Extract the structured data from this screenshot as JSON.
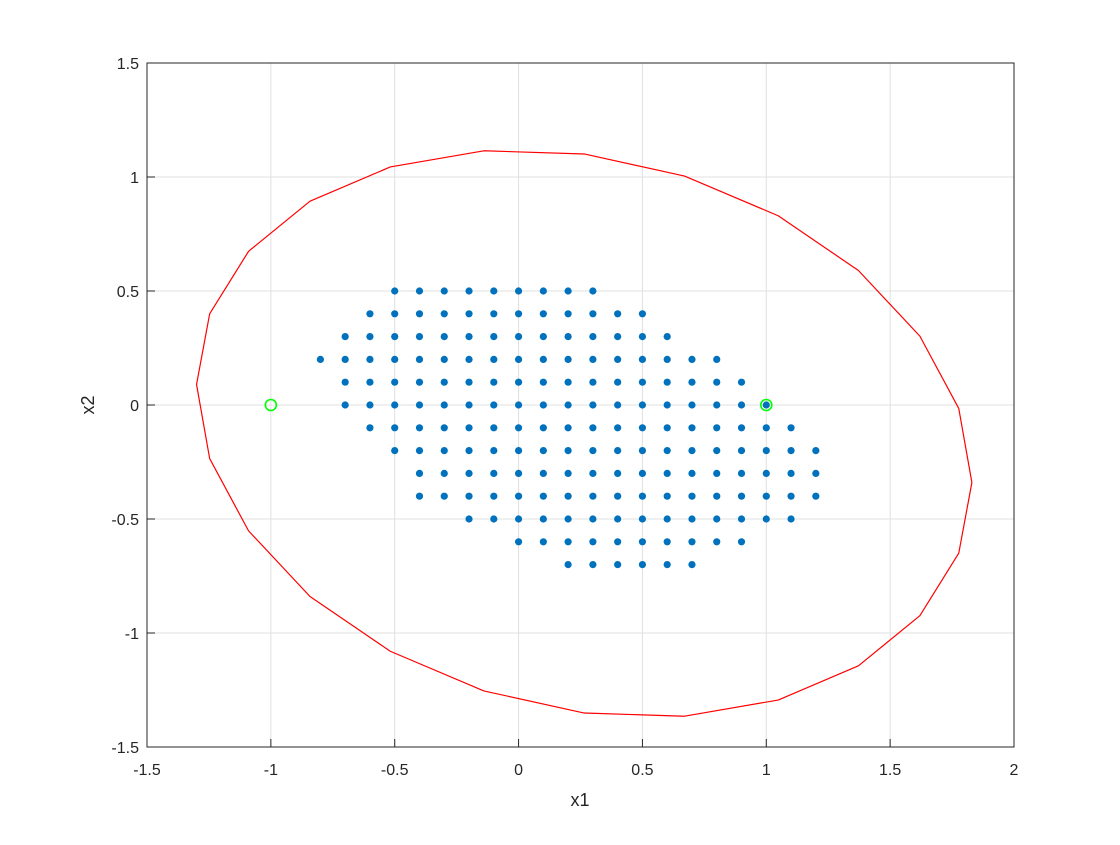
{
  "chart_data": {
    "type": "scatter",
    "xlabel": "x1",
    "ylabel": "x2",
    "xlim": [
      -1.5,
      2
    ],
    "ylim": [
      -1.5,
      1.5
    ],
    "xticks": [
      -1.5,
      -1,
      -0.5,
      0,
      0.5,
      1,
      1.5,
      2
    ],
    "yticks": [
      -1.5,
      -1,
      -0.5,
      0,
      0.5,
      1,
      1.5
    ],
    "grid": true,
    "series": [
      {
        "type": "scatter",
        "marker": "dot",
        "color": "#0072bd",
        "x": [
          -0.5,
          -0.4,
          -0.3,
          -0.2,
          -0.1,
          0,
          0.1,
          0.2,
          0.3,
          -0.6,
          -0.5,
          -0.4,
          -0.3,
          -0.2,
          -0.1,
          0,
          0.1,
          0.2,
          0.3,
          0.4,
          0.5,
          -0.7,
          -0.6,
          -0.5,
          -0.4,
          -0.3,
          -0.2,
          -0.1,
          0,
          0.1,
          0.2,
          0.3,
          0.4,
          0.5,
          0.6,
          -0.8,
          -0.7,
          -0.6,
          -0.5,
          -0.4,
          -0.3,
          -0.2,
          -0.1,
          0,
          0.1,
          0.2,
          0.3,
          0.4,
          0.5,
          0.6,
          0.7,
          0.8,
          -0.7,
          -0.6,
          -0.5,
          -0.4,
          -0.3,
          -0.2,
          -0.1,
          0,
          0.1,
          0.2,
          0.3,
          0.4,
          0.5,
          0.6,
          0.7,
          0.8,
          0.9,
          -0.7,
          -0.6,
          -0.5,
          -0.4,
          -0.3,
          -0.2,
          -0.1,
          0,
          0.1,
          0.2,
          0.3,
          0.4,
          0.5,
          0.6,
          0.7,
          0.8,
          0.9,
          1,
          -0.6,
          -0.5,
          -0.4,
          -0.3,
          -0.2,
          -0.1,
          0,
          0.1,
          0.2,
          0.3,
          0.4,
          0.5,
          0.6,
          0.7,
          0.8,
          0.9,
          1,
          1.1,
          -0.5,
          -0.4,
          -0.3,
          -0.2,
          -0.1,
          0,
          0.1,
          0.2,
          0.3,
          0.4,
          0.5,
          0.6,
          0.7,
          0.8,
          0.9,
          1,
          1.1,
          1.2,
          -0.4,
          -0.3,
          -0.2,
          -0.1,
          0,
          0.1,
          0.2,
          0.3,
          0.4,
          0.5,
          0.6,
          0.7,
          0.8,
          0.9,
          1,
          1.1,
          1.2,
          -0.4,
          -0.3,
          -0.2,
          -0.1,
          0,
          0.1,
          0.2,
          0.3,
          0.4,
          0.5,
          0.6,
          0.7,
          0.8,
          0.9,
          1,
          1.1,
          1.2,
          -0.2,
          -0.1,
          0,
          0.1,
          0.2,
          0.3,
          0.4,
          0.5,
          0.6,
          0.7,
          0.8,
          0.9,
          1,
          1.1,
          0,
          0.1,
          0.2,
          0.3,
          0.4,
          0.5,
          0.6,
          0.7,
          0.8,
          0.9,
          0.2,
          0.3,
          0.4,
          0.5,
          0.6,
          0.7
        ],
        "values": [
          0.5,
          0.5,
          0.5,
          0.5,
          0.5,
          0.5,
          0.5,
          0.5,
          0.5,
          0.4,
          0.4,
          0.4,
          0.4,
          0.4,
          0.4,
          0.4,
          0.4,
          0.4,
          0.4,
          0.4,
          0.4,
          0.3,
          0.3,
          0.3,
          0.3,
          0.3,
          0.3,
          0.3,
          0.3,
          0.3,
          0.3,
          0.3,
          0.3,
          0.3,
          0.3,
          0.2,
          0.2,
          0.2,
          0.2,
          0.2,
          0.2,
          0.2,
          0.2,
          0.2,
          0.2,
          0.2,
          0.2,
          0.2,
          0.2,
          0.2,
          0.2,
          0.2,
          0.1,
          0.1,
          0.1,
          0.1,
          0.1,
          0.1,
          0.1,
          0.1,
          0.1,
          0.1,
          0.1,
          0.1,
          0.1,
          0.1,
          0.1,
          0.1,
          0.1,
          0,
          0,
          0,
          0,
          0,
          0,
          0,
          0,
          0,
          0,
          0,
          0,
          0,
          0,
          0,
          0,
          0,
          0,
          -0.1,
          -0.1,
          -0.1,
          -0.1,
          -0.1,
          -0.1,
          -0.1,
          -0.1,
          -0.1,
          -0.1,
          -0.1,
          -0.1,
          -0.1,
          -0.1,
          -0.1,
          -0.1,
          -0.1,
          -0.1,
          -0.2,
          -0.2,
          -0.2,
          -0.2,
          -0.2,
          -0.2,
          -0.2,
          -0.2,
          -0.2,
          -0.2,
          -0.2,
          -0.2,
          -0.2,
          -0.2,
          -0.2,
          -0.2,
          -0.2,
          -0.2,
          -0.3,
          -0.3,
          -0.3,
          -0.3,
          -0.3,
          -0.3,
          -0.3,
          -0.3,
          -0.3,
          -0.3,
          -0.3,
          -0.3,
          -0.3,
          -0.3,
          -0.3,
          -0.3,
          -0.3,
          -0.4,
          -0.4,
          -0.4,
          -0.4,
          -0.4,
          -0.4,
          -0.4,
          -0.4,
          -0.4,
          -0.4,
          -0.4,
          -0.4,
          -0.4,
          -0.4,
          -0.4,
          -0.4,
          -0.4,
          -0.5,
          -0.5,
          -0.5,
          -0.5,
          -0.5,
          -0.5,
          -0.5,
          -0.5,
          -0.5,
          -0.5,
          -0.5,
          -0.5,
          -0.5,
          -0.5,
          -0.6,
          -0.6,
          -0.6,
          -0.6,
          -0.6,
          -0.6,
          -0.6,
          -0.6,
          -0.6,
          -0.6,
          -0.7,
          -0.7,
          -0.7,
          -0.7,
          -0.7,
          -0.7
        ]
      },
      {
        "type": "line",
        "color": "#ff0000",
        "x": [
          1.83,
          1.777,
          1.62,
          1.372,
          1.048,
          0.67,
          0.265,
          -0.14,
          -0.518,
          -0.842,
          -1.09,
          -1.247,
          -1.3,
          -1.247,
          -1.09,
          -0.842,
          -0.518,
          -0.14,
          0.265,
          0.67,
          1.048,
          1.372,
          1.62,
          1.777,
          1.83
        ],
        "values": [
          -0.34,
          -0.015,
          0.302,
          0.59,
          0.83,
          1.004,
          1.101,
          1.115,
          1.044,
          0.894,
          0.674,
          0.4,
          0.09,
          -0.235,
          -0.552,
          -0.84,
          -1.08,
          -1.254,
          -1.351,
          -1.365,
          -1.294,
          -1.144,
          -0.924,
          -0.65,
          -0.34
        ]
      },
      {
        "type": "scatter",
        "marker": "open-circle",
        "color": "#00ff00",
        "x": [
          -1,
          1
        ],
        "values": [
          0,
          0
        ]
      }
    ]
  }
}
